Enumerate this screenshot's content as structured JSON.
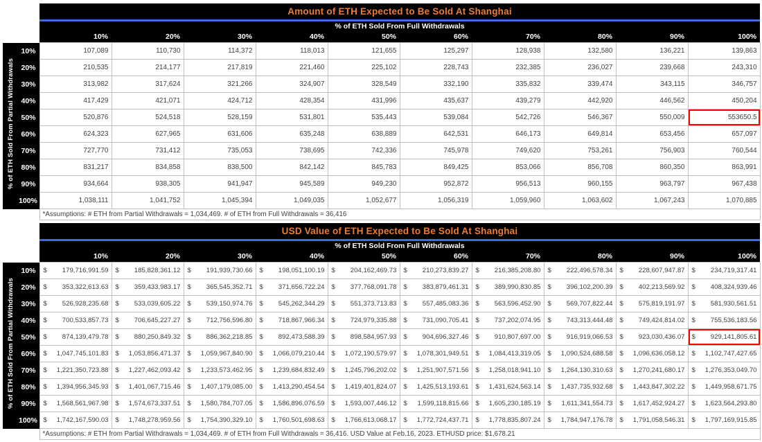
{
  "colors": {
    "title_text": "#ED7D31",
    "divider_blue": "#4169E1",
    "header_bg": "#000000",
    "grid_line": "#BFBFBF",
    "cell_text": "#404040",
    "highlight_border": "#FF0000"
  },
  "chart_data": [
    {
      "type": "table",
      "title": "Amount of ETH Expected to Be Sold At Shanghai",
      "col_axis_label": "% of ETH Sold From Full Withdrawals",
      "row_axis_label": "% of ETH Sold From Partial Withdrawals",
      "col_headers": [
        "10%",
        "20%",
        "30%",
        "40%",
        "50%",
        "60%",
        "70%",
        "80%",
        "90%",
        "100%"
      ],
      "row_headers": [
        "10%",
        "20%",
        "30%",
        "40%",
        "50%",
        "60%",
        "70%",
        "80%",
        "90%",
        "100%"
      ],
      "rows": [
        [
          "107,089",
          "110,730",
          "114,372",
          "118,013",
          "121,655",
          "125,297",
          "128,938",
          "132,580",
          "136,221",
          "139,863"
        ],
        [
          "210,535",
          "214,177",
          "217,819",
          "221,460",
          "225,102",
          "228,743",
          "232,385",
          "236,027",
          "239,668",
          "243,310"
        ],
        [
          "313,982",
          "317,624",
          "321,266",
          "324,907",
          "328,549",
          "332,190",
          "335,832",
          "339,474",
          "343,115",
          "346,757"
        ],
        [
          "417,429",
          "421,071",
          "424,712",
          "428,354",
          "431,996",
          "435,637",
          "439,279",
          "442,920",
          "446,562",
          "450,204"
        ],
        [
          "520,876",
          "524,518",
          "528,159",
          "531,801",
          "535,443",
          "539,084",
          "542,726",
          "546,367",
          "550,009",
          "553650.5"
        ],
        [
          "624,323",
          "627,965",
          "631,606",
          "635,248",
          "638,889",
          "642,531",
          "646,173",
          "649,814",
          "653,456",
          "657,097"
        ],
        [
          "727,770",
          "731,412",
          "735,053",
          "738,695",
          "742,336",
          "745,978",
          "749,620",
          "753,261",
          "756,903",
          "760,544"
        ],
        [
          "831,217",
          "834,858",
          "838,500",
          "842,142",
          "845,783",
          "849,425",
          "853,066",
          "856,708",
          "860,350",
          "863,991"
        ],
        [
          "934,664",
          "938,305",
          "941,947",
          "945,589",
          "949,230",
          "952,872",
          "956,513",
          "960,155",
          "963,797",
          "967,438"
        ],
        [
          "1,038,111",
          "1,041,752",
          "1,045,394",
          "1,049,035",
          "1,052,677",
          "1,056,319",
          "1,059,960",
          "1,063,602",
          "1,067,243",
          "1,070,885"
        ]
      ],
      "highlight_cell": {
        "row": 4,
        "col": 9,
        "row_header": "50%",
        "col_header": "100%",
        "value": "553650.5"
      },
      "assumptions": "*Assumptions: # ETH from Partial Withdrawals = 1,034,469. # of ETH from Full Withdrawals = 36,416"
    },
    {
      "type": "table",
      "title": "USD Value of ETH Expected to Be Sold At Shanghai",
      "currency_prefix": "$",
      "col_axis_label": "% of ETH Sold From Full Withdrawals",
      "row_axis_label": "% of ETH Sold From Partial Withdrawals",
      "col_headers": [
        "10%",
        "20%",
        "30%",
        "40%",
        "50%",
        "60%",
        "70%",
        "80%",
        "90%",
        "100%"
      ],
      "row_headers": [
        "10%",
        "20%",
        "30%",
        "40%",
        "50%",
        "60%",
        "70%",
        "80%",
        "90%",
        "100%"
      ],
      "rows": [
        [
          "179,716,991.59",
          "185,828,361.12",
          "191,939,730.66",
          "198,051,100.19",
          "204,162,469.73",
          "210,273,839.27",
          "216,385,208.80",
          "222,496,578.34",
          "228,607,947.87",
          "234,719,317.41"
        ],
        [
          "353,322,613.63",
          "359,433,983.17",
          "365,545,352.71",
          "371,656,722.24",
          "377,768,091.78",
          "383,879,461.31",
          "389,990,830.85",
          "396,102,200.39",
          "402,213,569.92",
          "408,324,939.46"
        ],
        [
          "526,928,235.68",
          "533,039,605.22",
          "539,150,974.76",
          "545,262,344.29",
          "551,373,713.83",
          "557,485,083.36",
          "563,596,452.90",
          "569,707,822.44",
          "575,819,191.97",
          "581,930,561.51"
        ],
        [
          "700,533,857.73",
          "706,645,227.27",
          "712,756,596.80",
          "718,867,966.34",
          "724,979,335.88",
          "731,090,705.41",
          "737,202,074.95",
          "743,313,444.48",
          "749,424,814.02",
          "755,536,183.56"
        ],
        [
          "874,139,479.78",
          "880,250,849.32",
          "886,362,218.85",
          "892,473,588.39",
          "898,584,957.93",
          "904,696,327.46",
          "910,807,697.00",
          "916,919,066.53",
          "923,030,436.07",
          "929,141,805.61"
        ],
        [
          "1,047,745,101.83",
          "1,053,856,471.37",
          "1,059,967,840.90",
          "1,066,079,210.44",
          "1,072,190,579.97",
          "1,078,301,949.51",
          "1,084,413,319.05",
          "1,090,524,688.58",
          "1,096,636,058.12",
          "1,102,747,427.65"
        ],
        [
          "1,221,350,723.88",
          "1,227,462,093.42",
          "1,233,573,462.95",
          "1,239,684,832.49",
          "1,245,796,202.02",
          "1,251,907,571.56",
          "1,258,018,941.10",
          "1,264,130,310.63",
          "1,270,241,680.17",
          "1,276,353,049.70"
        ],
        [
          "1,394,956,345.93",
          "1,401,067,715.46",
          "1,407,179,085.00",
          "1,413,290,454.54",
          "1,419,401,824.07",
          "1,425,513,193.61",
          "1,431,624,563.14",
          "1,437,735,932.68",
          "1,443,847,302.22",
          "1,449,958,671.75"
        ],
        [
          "1,568,561,967.98",
          "1,574,673,337.51",
          "1,580,784,707.05",
          "1,586,896,076.59",
          "1,593,007,446.12",
          "1,599,118,815.66",
          "1,605,230,185.19",
          "1,611,341,554.73",
          "1,617,452,924.27",
          "1,623,564,293.80"
        ],
        [
          "1,742,167,590.03",
          "1,748,278,959.56",
          "1,754,390,329.10",
          "1,760,501,698.63",
          "1,766,613,068.17",
          "1,772,724,437.71",
          "1,778,835,807.24",
          "1,784,947,176.78",
          "1,791,058,546.31",
          "1,797,169,915.85"
        ]
      ],
      "highlight_cell": {
        "row": 4,
        "col": 9,
        "row_header": "50%",
        "col_header": "100%",
        "value": "929,141,805.61"
      },
      "assumptions": "*Assumptions: # ETH from Partial Withdrawals = 1,034,469. # of ETH from Full Withdrawals = 36,416. USD Value at Feb.16, 2023. ETHUSD price: $1,678.21"
    }
  ]
}
